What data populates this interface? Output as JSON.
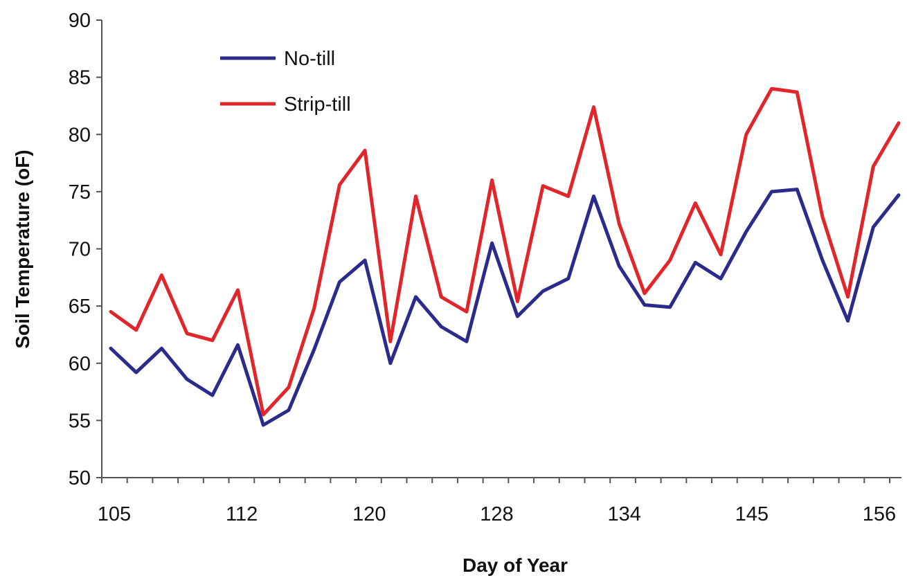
{
  "chart_data": {
    "type": "line",
    "xlabel": "Day of Year",
    "ylabel": "Soil Temperature (oF)",
    "ylim": [
      50,
      90
    ],
    "yticks": [
      50,
      55,
      60,
      65,
      70,
      75,
      80,
      85,
      90
    ],
    "xticklabels": [
      "105",
      "112",
      "120",
      "128",
      "134",
      "145",
      "156"
    ],
    "grid": false,
    "legend_position": "top-left",
    "series": [
      {
        "name": "No-till",
        "color": "#2b2b8c",
        "values": [
          61.3,
          59.2,
          61.3,
          58.6,
          57.2,
          61.6,
          54.6,
          55.9,
          61.2,
          67.1,
          69.0,
          60.0,
          65.8,
          63.2,
          61.9,
          70.5,
          64.1,
          66.3,
          67.4,
          74.6,
          68.5,
          65.1,
          64.9,
          68.8,
          67.4,
          71.5,
          75.0,
          75.2,
          69.0,
          63.7,
          71.9,
          74.7
        ]
      },
      {
        "name": "Strip-till",
        "color": "#e0262b",
        "values": [
          64.5,
          62.9,
          67.7,
          62.6,
          62.0,
          66.4,
          55.5,
          57.9,
          64.8,
          75.6,
          78.6,
          61.9,
          74.6,
          65.8,
          64.5,
          76.0,
          65.4,
          75.5,
          74.6,
          82.4,
          72.2,
          66.1,
          69.0,
          74.0,
          69.5,
          80.0,
          84.0,
          83.7,
          72.8,
          65.8,
          77.2,
          81.0
        ]
      }
    ]
  }
}
